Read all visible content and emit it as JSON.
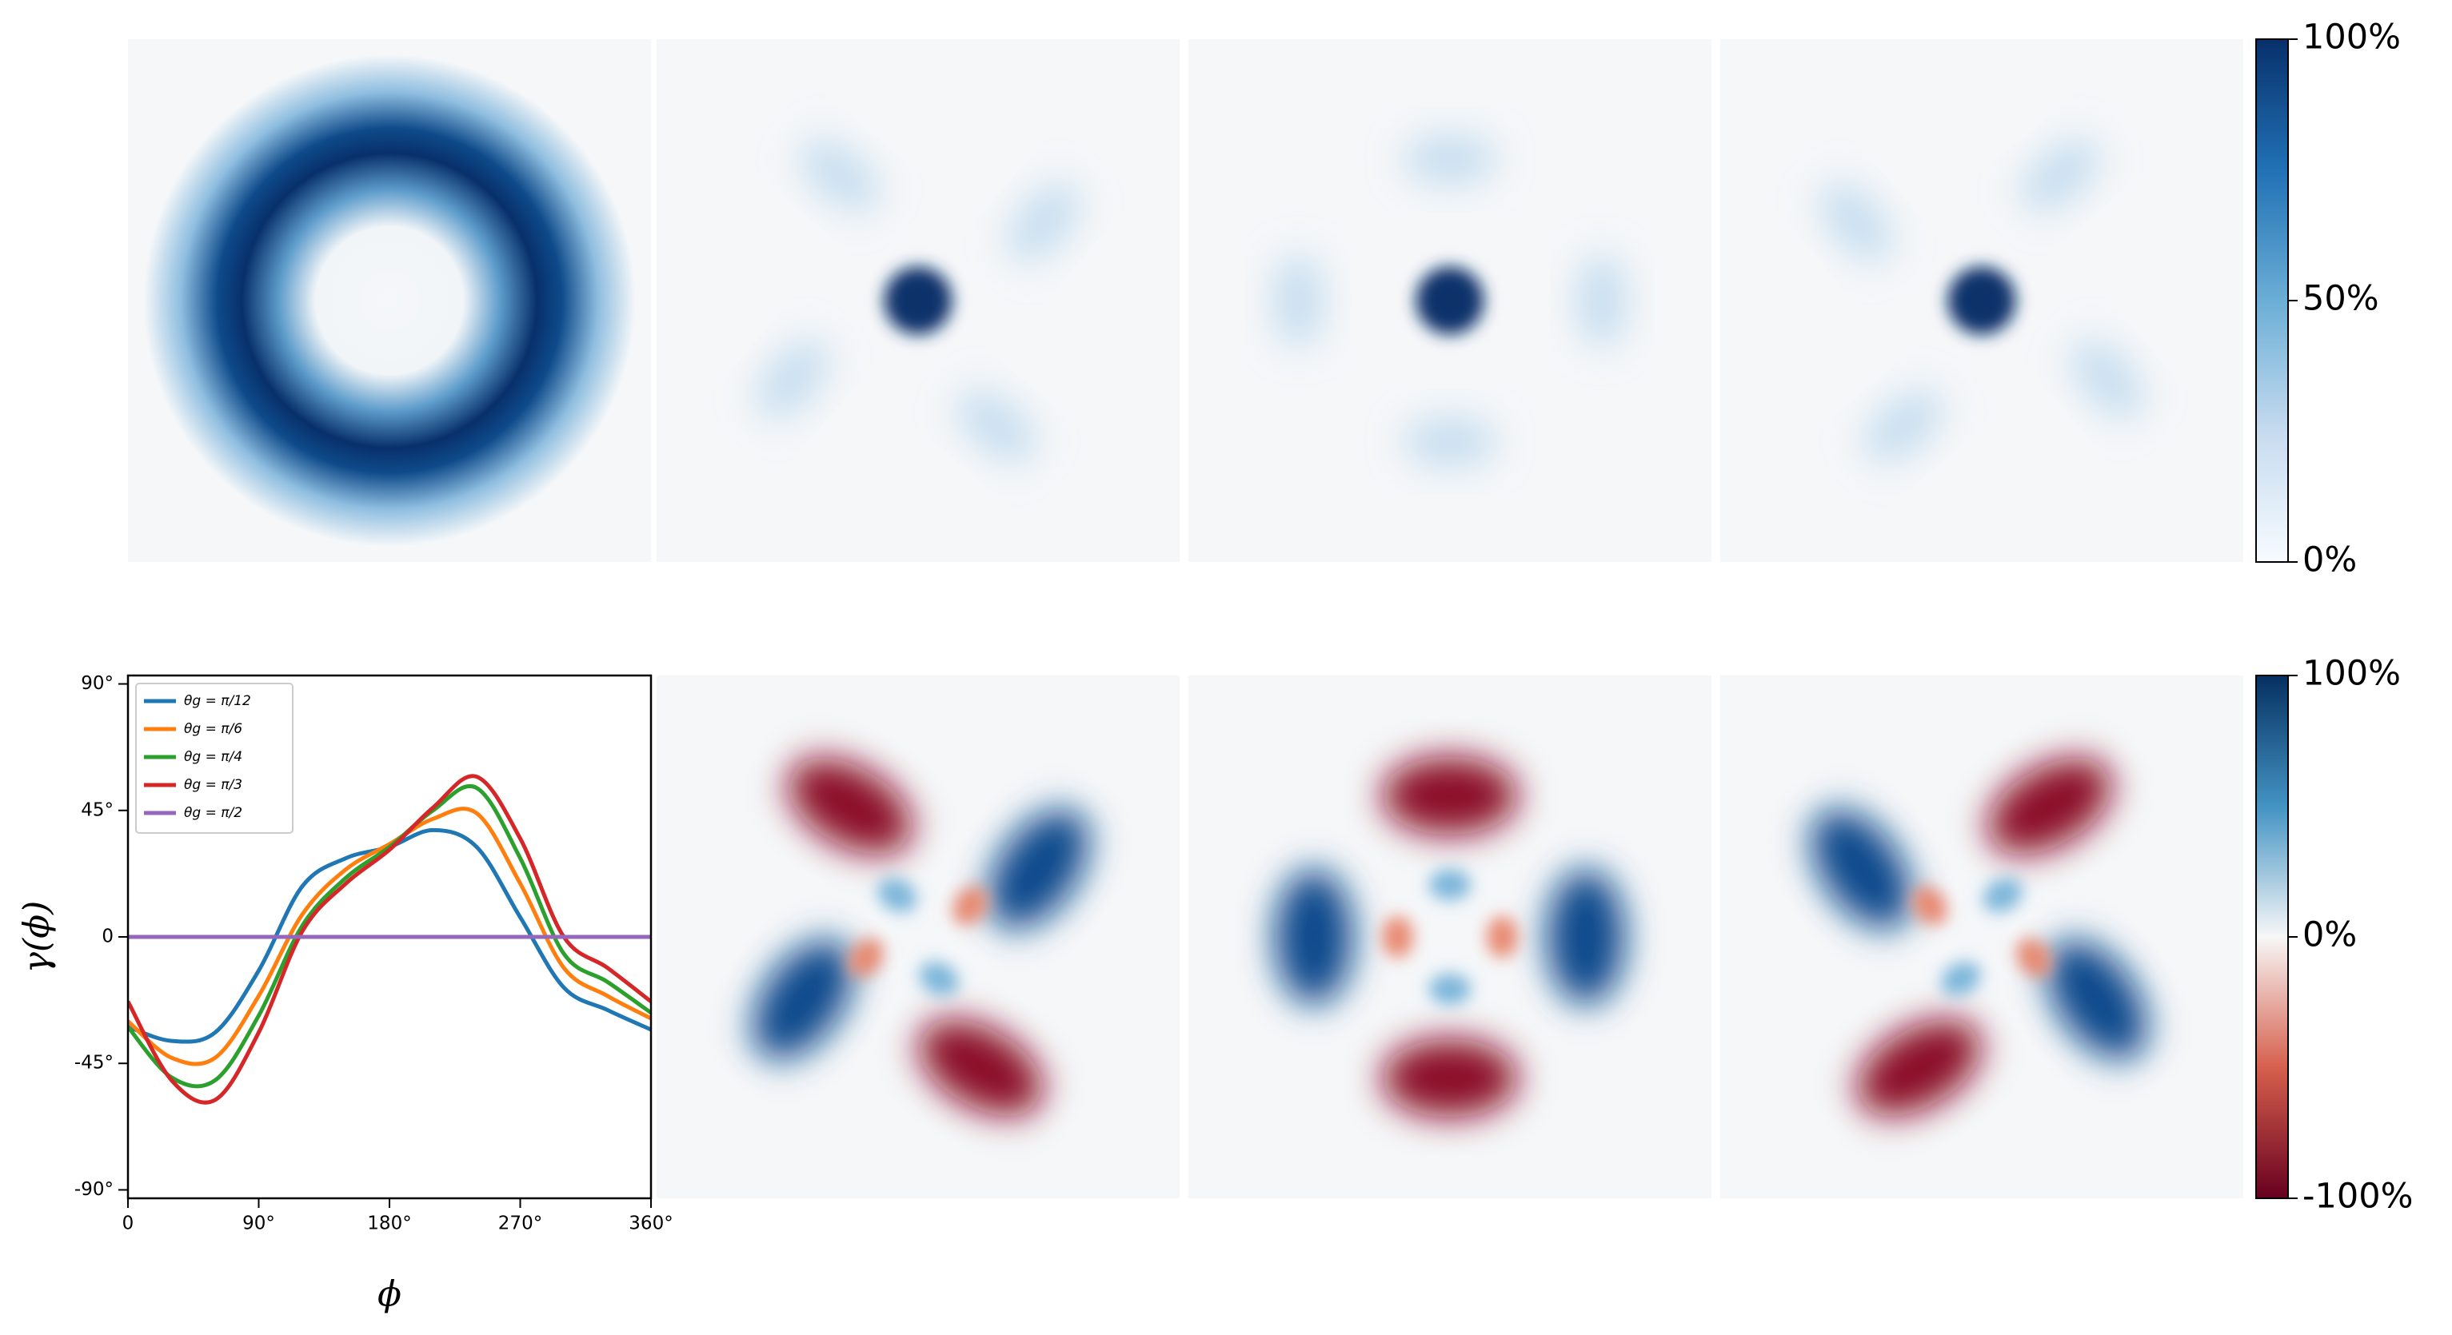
{
  "chart_data": [
    {
      "type": "colorbar",
      "colors": [
        "#f7fbff",
        "#c6dbef",
        "#6baed6",
        "#2171b5",
        "#08306b"
      ],
      "ylim": [
        0,
        100
      ],
      "yticks": [
        {
          "value": 0,
          "label": "0%"
        },
        {
          "value": 50,
          "label": "50%"
        },
        {
          "value": 100,
          "label": "100%"
        }
      ]
    },
    {
      "type": "colorbar",
      "colors": [
        "#67001f",
        "#d6604d",
        "#f7f7f7",
        "#4393c3",
        "#053061"
      ],
      "ylim": [
        -100,
        100
      ],
      "yticks": [
        {
          "value": -100,
          "label": "-100%"
        },
        {
          "value": 0,
          "label": "0%"
        },
        {
          "value": 100,
          "label": "100%"
        }
      ]
    },
    {
      "type": "line",
      "xlabel": "ϕ",
      "ylabel": "γ(ϕ)",
      "x": [
        0,
        30,
        60,
        90,
        120,
        150,
        180,
        210,
        240,
        270,
        300,
        330,
        360
      ],
      "xlim": [
        0,
        360
      ],
      "xticks": [
        0,
        {
          "value": 90,
          "label": "90°"
        },
        {
          "value": 180,
          "label": "180°"
        },
        {
          "value": 270,
          "label": "270°"
        },
        {
          "value": 360,
          "label": "360°"
        }
      ],
      "ylim": [
        -93,
        93
      ],
      "yticks": [
        {
          "value": -90,
          "label": "-90°"
        },
        {
          "value": -45,
          "label": "-45°"
        },
        0,
        {
          "value": 45,
          "label": "45°"
        },
        {
          "value": 90,
          "label": "90°"
        }
      ],
      "legend": "upper left",
      "series": [
        {
          "name": "θg = π/12",
          "color": "#1f77b4",
          "values": [
            -32,
            -37,
            -34,
            -12,
            18,
            28,
            32,
            38,
            32,
            7,
            -18,
            -26,
            -33
          ]
        },
        {
          "name": "θg = π/6",
          "color": "#ff7f0e",
          "values": [
            -30,
            -43,
            -43,
            -21,
            8,
            24,
            33,
            42,
            44,
            19,
            -11,
            -21,
            -29
          ]
        },
        {
          "name": "θg = π/4",
          "color": "#2ca02c",
          "values": [
            -32,
            -50,
            -51,
            -28,
            4,
            21,
            32,
            45,
            53,
            28,
            -6,
            -16,
            -27
          ]
        },
        {
          "name": "θg = π/3",
          "color": "#d62728",
          "values": [
            -23,
            -51,
            -58,
            -34,
            2,
            19,
            31,
            46,
            57,
            35,
            0,
            -11,
            -23
          ]
        },
        {
          "name": "θg = π/2",
          "color": "#9467bd",
          "values": [
            0,
            0,
            0,
            0,
            0,
            0,
            0,
            0,
            0,
            0,
            0,
            0,
            0
          ]
        }
      ]
    }
  ]
}
